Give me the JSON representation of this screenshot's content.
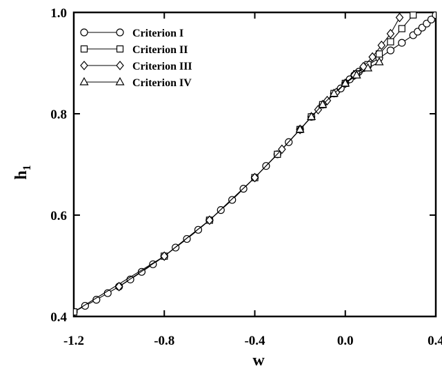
{
  "chart_data": {
    "type": "line",
    "xlabel": "w",
    "ylabel": "h",
    "ylabel_subscript": "1",
    "xlim": [
      -1.2,
      0.4
    ],
    "ylim": [
      0.4,
      1.0
    ],
    "x_ticks": [
      -1.2,
      -0.8,
      -0.4,
      0.0,
      0.4
    ],
    "y_ticks": [
      0.4,
      0.6,
      0.8,
      1.0
    ],
    "x_tick_labels": [
      "-1.2",
      "-0.8",
      "-0.4",
      "0.0",
      "0.4"
    ],
    "y_tick_labels": [
      "0.4",
      "0.6",
      "0.8",
      "1.0"
    ],
    "grid": false,
    "legend_position": "top-left",
    "series": [
      {
        "name": "Criterion I",
        "marker": "circle",
        "x": [
          -1.2,
          -1.15,
          -1.1,
          -1.05,
          -1.0,
          -0.95,
          -0.9,
          -0.85,
          -0.8,
          -0.75,
          -0.7,
          -0.65,
          -0.6,
          -0.55,
          -0.5,
          -0.45,
          -0.4,
          -0.35,
          -0.3,
          -0.25,
          -0.2,
          -0.15,
          -0.1,
          -0.05,
          -0.02,
          0.0,
          0.02,
          0.04,
          0.06,
          0.08,
          0.1,
          0.15,
          0.2,
          0.25,
          0.3,
          0.32,
          0.34,
          0.36,
          0.38,
          0.4
        ],
        "y": [
          0.409,
          0.421,
          0.433,
          0.446,
          0.459,
          0.473,
          0.488,
          0.503,
          0.519,
          0.536,
          0.553,
          0.571,
          0.59,
          0.61,
          0.63,
          0.652,
          0.674,
          0.697,
          0.72,
          0.744,
          0.769,
          0.794,
          0.818,
          0.84,
          0.85,
          0.86,
          0.868,
          0.876,
          0.883,
          0.89,
          0.896,
          0.91,
          0.925,
          0.94,
          0.955,
          0.962,
          0.97,
          0.978,
          0.986,
          0.995
        ]
      },
      {
        "name": "Criterion II",
        "marker": "square",
        "x": [
          -1.2,
          -0.8,
          -0.6,
          -0.4,
          -0.3,
          -0.2,
          -0.15,
          -0.1,
          -0.05,
          0.0,
          0.05,
          0.1,
          0.15,
          0.2,
          0.25,
          0.3
        ],
        "y": [
          0.409,
          0.519,
          0.59,
          0.674,
          0.72,
          0.769,
          0.794,
          0.818,
          0.84,
          0.86,
          0.879,
          0.897,
          0.918,
          0.942,
          0.968,
          0.995
        ]
      },
      {
        "name": "Criterion III",
        "marker": "diamond",
        "x": [
          -1.0,
          -0.8,
          -0.6,
          -0.4,
          -0.28,
          -0.2,
          -0.12,
          -0.08,
          -0.04,
          0.0,
          0.04,
          0.08,
          0.12,
          0.16,
          0.2,
          0.24
        ],
        "y": [
          0.459,
          0.519,
          0.59,
          0.674,
          0.73,
          0.769,
          0.808,
          0.826,
          0.842,
          0.86,
          0.876,
          0.893,
          0.912,
          0.935,
          0.958,
          0.99
        ]
      },
      {
        "name": "Criterion IV",
        "marker": "triangle",
        "x": [
          -0.2,
          -0.15,
          -0.1,
          -0.05,
          0.0,
          0.05,
          0.1,
          0.15
        ],
        "y": [
          0.769,
          0.794,
          0.818,
          0.84,
          0.86,
          0.876,
          0.89,
          0.902
        ]
      }
    ]
  }
}
